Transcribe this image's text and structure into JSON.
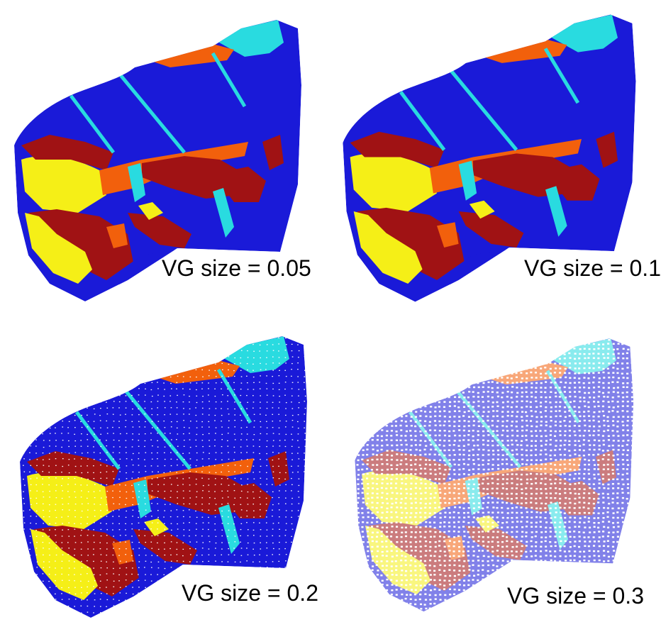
{
  "colors": {
    "blue": "#1a1ad8",
    "yellow": "#f5ef17",
    "orange": "#f2600c",
    "darkred": "#a01214",
    "cyan": "#29dbe0",
    "white": "#ffffff"
  },
  "panels": [
    {
      "caption": "VG size = 0.05"
    },
    {
      "caption": "VG size = 0.1"
    },
    {
      "caption": "VG size = 0.2"
    },
    {
      "caption": "VG size = 0.3"
    }
  ]
}
